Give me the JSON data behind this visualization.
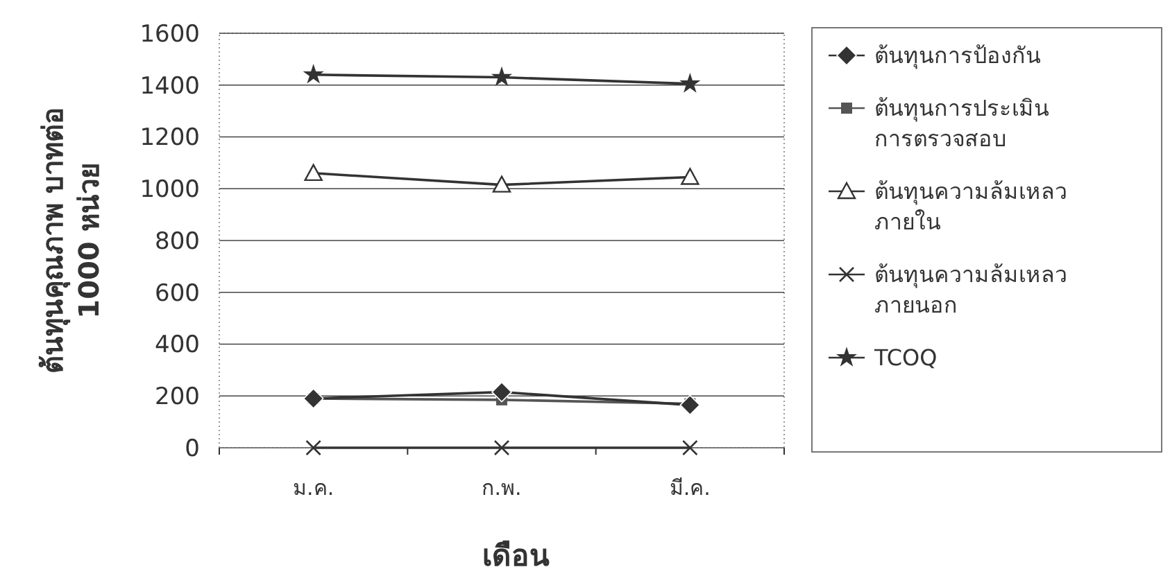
{
  "chart_data": {
    "type": "line",
    "xlabel": "เดือน",
    "ylabel": "ต้นทุนคุณภาพ บาทต่อ 1000 หน่วย",
    "categories": [
      "ม.ค.",
      "ก.พ.",
      "มี.ค."
    ],
    "series": [
      {
        "name": "ต้นทุนการป้องกัน",
        "color": "#333333",
        "marker": "diamond",
        "values": [
          190,
          215,
          165
        ]
      },
      {
        "name": "ต้นทุนการประเมิน การตรวจสอบ",
        "color": "#555555",
        "marker": "square",
        "values": [
          190,
          185,
          170
        ]
      },
      {
        "name": "ต้นทุนความล้มเหลว ภายใน",
        "color": "#333333",
        "marker": "triangle",
        "values": [
          1060,
          1015,
          1045
        ]
      },
      {
        "name": "ต้นทุนความล้มเหลว ภายนอก",
        "color": "#333333",
        "marker": "cross",
        "values": [
          0,
          0,
          0
        ]
      },
      {
        "name": "TCOQ",
        "color": "#333333",
        "marker": "star",
        "values": [
          1440,
          1430,
          1405
        ]
      }
    ],
    "ylim": [
      0,
      1600
    ],
    "yticks": [
      0,
      200,
      400,
      600,
      800,
      1000,
      1200,
      1400,
      1600
    ],
    "grid": "y",
    "legend": "right"
  }
}
